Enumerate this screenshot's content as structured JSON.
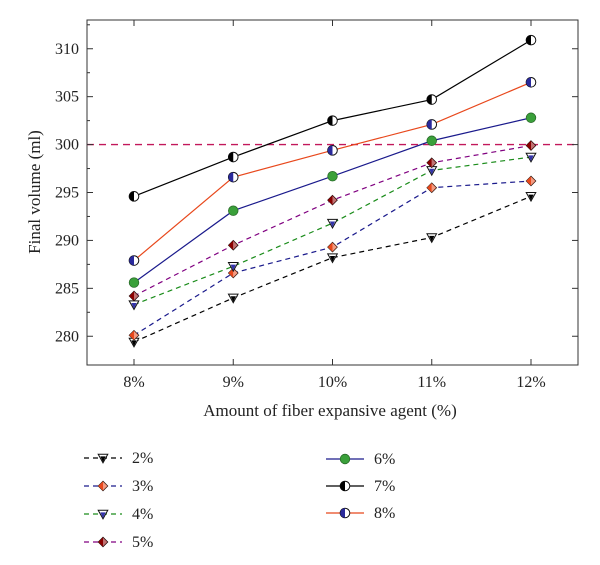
{
  "chart_data": {
    "type": "line",
    "categories": [
      "8%",
      "9%",
      "10%",
      "11%",
      "12%"
    ],
    "xlabel": "Amount of fiber expansive agent (%)",
    "ylabel": "Final volume (ml)",
    "ylim": [
      277,
      313
    ],
    "yticks": [
      280,
      285,
      290,
      295,
      300,
      305,
      310
    ],
    "reference_line": {
      "value": 300,
      "color": "#c2185b",
      "style": "dashed"
    },
    "legend_placement": "below plot, two columns",
    "series": [
      {
        "name": "2%",
        "values": [
          279.4,
          284.0,
          288.2,
          290.3,
          294.6
        ],
        "color": "#000000",
        "line": "dashed",
        "marker": "triangle-down"
      },
      {
        "name": "3%",
        "values": [
          280.1,
          286.6,
          289.3,
          295.5,
          296.2
        ],
        "color": "#1a1a8c",
        "line": "dashed",
        "marker": "diamond",
        "marker_color": "#e8481c"
      },
      {
        "name": "4%",
        "values": [
          283.3,
          287.3,
          291.8,
          297.3,
          298.7
        ],
        "color": "#1a8c1a",
        "line": "dashed",
        "marker": "triangle-down",
        "marker_color": "#3333aa"
      },
      {
        "name": "5%",
        "values": [
          284.2,
          289.5,
          294.2,
          298.1,
          299.9
        ],
        "color": "#800080",
        "line": "dashed",
        "marker": "diamond",
        "marker_color": "#8b0000"
      },
      {
        "name": "6%",
        "values": [
          285.6,
          293.1,
          296.7,
          300.4,
          302.8
        ],
        "color": "#1a1a8c",
        "line": "solid",
        "marker": "circle",
        "marker_color": "#3aa03a"
      },
      {
        "name": "7%",
        "values": [
          294.6,
          298.7,
          302.5,
          304.7,
          310.9
        ],
        "color": "#000000",
        "line": "solid",
        "marker": "circle-half",
        "marker_color": "#000000"
      },
      {
        "name": "8%",
        "values": [
          287.9,
          296.6,
          299.4,
          302.1,
          306.5
        ],
        "color": "#e8481c",
        "line": "solid",
        "marker": "circle-half",
        "marker_color": "#2a2a9c"
      }
    ]
  }
}
